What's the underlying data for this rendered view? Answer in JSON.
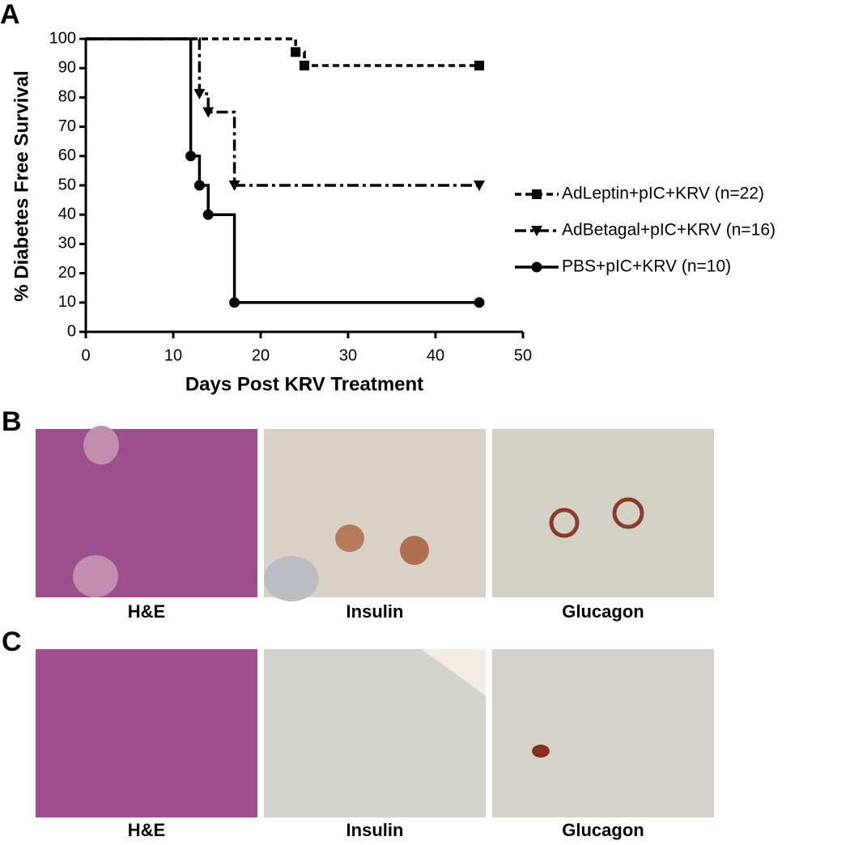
{
  "chart_data": {
    "type": "step",
    "xlabel": "Days Post KRV Treatment",
    "ylabel": "% Diabetes Free Survival",
    "xlim": [
      0,
      50
    ],
    "xticks": [
      0,
      10,
      20,
      30,
      40,
      50
    ],
    "ylim": [
      0,
      100
    ],
    "yticks": [
      0,
      10,
      20,
      30,
      40,
      50,
      60,
      70,
      80,
      90,
      100
    ],
    "legend": "right",
    "series": [
      {
        "name": "AdLeptin+pIC+KRV (n=22)",
        "color": "#000000",
        "dash": "dashed",
        "marker": "square",
        "x": [
          0,
          24,
          25,
          45
        ],
        "values": [
          100,
          95.5,
          90.9,
          90.9
        ]
      },
      {
        "name": "AdBetagal+pIC+KRV (n=16)",
        "color": "#000000",
        "dash": "dashdot",
        "marker": "triangle-down",
        "x": [
          0,
          13,
          14,
          17,
          45
        ],
        "values": [
          100,
          81.25,
          75,
          50,
          50
        ]
      },
      {
        "name": "PBS+pIC+KRV (n=10)",
        "color": "#000000",
        "dash": "solid",
        "marker": "circle",
        "x": [
          0,
          12,
          13,
          14,
          17,
          45
        ],
        "values": [
          100,
          60,
          50,
          40,
          10,
          10
        ]
      }
    ]
  },
  "panel_labels": [
    "A",
    "B",
    "C"
  ],
  "image_rows": [
    {
      "captions": [
        "H&E",
        "Insulin",
        "Glucagon"
      ]
    },
    {
      "captions": [
        "H&E",
        "Insulin",
        "Glucagon"
      ]
    }
  ]
}
